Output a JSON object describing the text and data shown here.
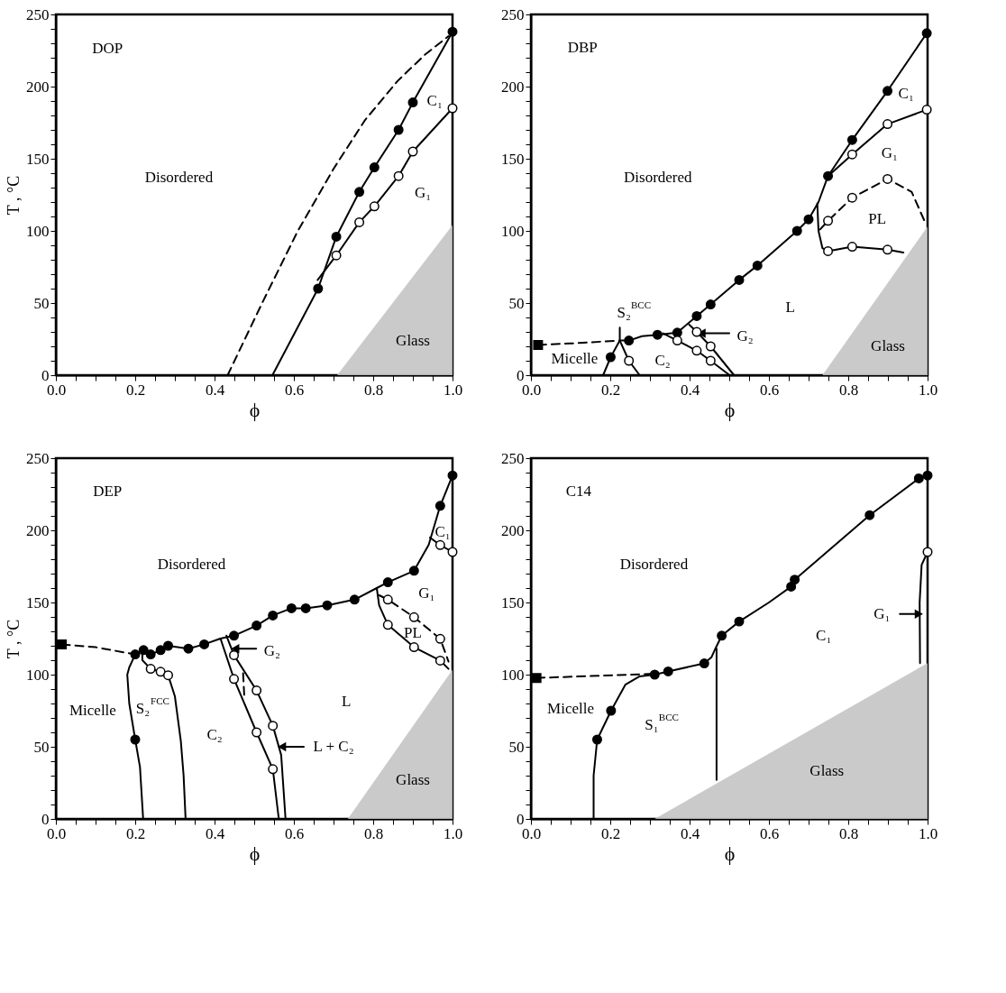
{
  "chart_data": [
    {
      "type": "line",
      "xlabel": "ϕ",
      "ylabel": "T , °C",
      "xlim": [
        0,
        1
      ],
      "ylim": [
        0,
        250
      ],
      "xticks": [
        {
          "value": 0,
          "label": "0.0"
        },
        {
          "value": 0.05,
          "label": null
        },
        {
          "value": 0.1,
          "label": null
        },
        {
          "value": 0.15,
          "label": null
        },
        {
          "value": 0.2,
          "label": "0.2"
        },
        {
          "value": 0.25,
          "label": null
        },
        {
          "value": 0.3,
          "label": null
        },
        {
          "value": 0.35,
          "label": null
        },
        {
          "value": 0.4,
          "label": "0.4"
        },
        {
          "value": 0.45,
          "label": null
        },
        {
          "value": 0.5,
          "label": null
        },
        {
          "value": 0.55,
          "label": null
        },
        {
          "value": 0.6,
          "label": "0.6"
        },
        {
          "value": 0.65,
          "label": null
        },
        {
          "value": 0.7,
          "label": null
        },
        {
          "value": 0.75,
          "label": null
        },
        {
          "value": 0.8,
          "label": "0.8"
        },
        {
          "value": 0.85,
          "label": null
        },
        {
          "value": 0.9,
          "label": null
        },
        {
          "value": 0.95,
          "label": null
        },
        {
          "value": 1,
          "label": "1.0"
        }
      ],
      "yticks": [
        0,
        {
          "value": 10,
          "label": null
        },
        {
          "value": 20,
          "label": null
        },
        {
          "value": 30,
          "label": null
        },
        {
          "value": 40,
          "label": null
        },
        50,
        {
          "value": 60,
          "label": null
        },
        {
          "value": 70,
          "label": null
        },
        {
          "value": 80,
          "label": null
        },
        {
          "value": 90,
          "label": null
        },
        100,
        {
          "value": 110,
          "label": null
        },
        {
          "value": 120,
          "label": null
        },
        {
          "value": 130,
          "label": null
        },
        {
          "value": 140,
          "label": null
        },
        150,
        {
          "value": 160,
          "label": null
        },
        {
          "value": 170,
          "label": null
        },
        {
          "value": 180,
          "label": null
        },
        {
          "value": 190,
          "label": null
        },
        200,
        {
          "value": 210,
          "label": null
        },
        {
          "value": 220,
          "label": null
        },
        {
          "value": 230,
          "label": null
        },
        {
          "value": 240,
          "label": null
        },
        250
      ],
      "series": [
        {
          "type": "area",
          "color": "#c4c4c4",
          "x": [
            0.709,
            1.0
          ],
          "values": [
            0,
            104
          ]
        },
        {
          "type": "line",
          "color": "#000000",
          "line_style": "dashed",
          "x": [
            0.433,
            0.52,
            0.61,
            0.7,
            0.78,
            0.862,
            0.93,
            0.99
          ],
          "values": [
            0,
            50,
            100,
            143,
            177,
            204,
            222,
            235
          ]
        },
        {
          "type": "line",
          "color": "#000000",
          "line_style": "solid",
          "x": [
            0.546,
            0.661,
            0.707,
            0.765,
            0.803,
            0.864,
            0.9,
            1.0
          ],
          "values": [
            0,
            60,
            96,
            127,
            144,
            170,
            189,
            238
          ]
        },
        {
          "type": "line",
          "color": "#000000",
          "line_style": "solid",
          "x": [
            0.66,
            0.707,
            0.765,
            0.803,
            0.864,
            0.9,
            1.0
          ],
          "values": [
            66,
            83,
            106,
            117,
            138,
            155,
            185
          ]
        },
        {
          "type": "scatter",
          "marker": "circle",
          "color": "#000000",
          "x": [
            0.661,
            0.707,
            0.765,
            0.803,
            0.864,
            0.9,
            1.0
          ],
          "values": [
            60,
            96,
            127,
            144,
            170,
            189,
            238
          ]
        },
        {
          "type": "scatter",
          "marker": "circle",
          "color": "#ffffff",
          "x": [
            0.707,
            0.765,
            0.803,
            0.864,
            0.9,
            1.0
          ],
          "values": [
            83,
            106,
            117,
            138,
            155,
            185
          ]
        }
      ],
      "annotations": [
        "DOP",
        "Disordered",
        "C₁",
        "G₁",
        "Glass"
      ]
    },
    {
      "type": "line",
      "xlabel": "ϕ",
      "xlim": [
        0,
        1
      ],
      "ylim": [
        0,
        250
      ],
      "xticks": [
        {
          "value": 0,
          "label": "0.0"
        },
        {
          "value": 0.05,
          "label": null
        },
        {
          "value": 0.1,
          "label": null
        },
        {
          "value": 0.15,
          "label": null
        },
        {
          "value": 0.2,
          "label": "0.2"
        },
        {
          "value": 0.25,
          "label": null
        },
        {
          "value": 0.3,
          "label": null
        },
        {
          "value": 0.35,
          "label": null
        },
        {
          "value": 0.4,
          "label": "0.4"
        },
        {
          "value": 0.45,
          "label": null
        },
        {
          "value": 0.5,
          "label": null
        },
        {
          "value": 0.55,
          "label": null
        },
        {
          "value": 0.6,
          "label": "0.6"
        },
        {
          "value": 0.65,
          "label": null
        },
        {
          "value": 0.7,
          "label": null
        },
        {
          "value": 0.75,
          "label": null
        },
        {
          "value": 0.8,
          "label": "0.8"
        },
        {
          "value": 0.85,
          "label": null
        },
        {
          "value": 0.9,
          "label": null
        },
        {
          "value": 0.95,
          "label": null
        },
        {
          "value": 1,
          "label": "1.0"
        }
      ],
      "yticks": [
        0,
        {
          "value": 10,
          "label": null
        },
        {
          "value": 20,
          "label": null
        },
        {
          "value": 30,
          "label": null
        },
        {
          "value": 40,
          "label": null
        },
        50,
        {
          "value": 60,
          "label": null
        },
        {
          "value": 70,
          "label": null
        },
        {
          "value": 80,
          "label": null
        },
        {
          "value": 90,
          "label": null
        },
        100,
        {
          "value": 110,
          "label": null
        },
        {
          "value": 120,
          "label": null
        },
        {
          "value": 130,
          "label": null
        },
        {
          "value": 140,
          "label": null
        },
        150,
        {
          "value": 160,
          "label": null
        },
        {
          "value": 170,
          "label": null
        },
        {
          "value": 180,
          "label": null
        },
        {
          "value": 190,
          "label": null
        },
        200,
        {
          "value": 210,
          "label": null
        },
        {
          "value": 220,
          "label": null
        },
        {
          "value": 230,
          "label": null
        },
        {
          "value": 240,
          "label": null
        },
        250
      ],
      "series": [
        {
          "type": "area",
          "color": "#c4c4c4",
          "x": [
            0.735,
            1.0
          ],
          "values": [
            0,
            103
          ]
        },
        {
          "type": "line",
          "color": "#000000",
          "line_style": "dashed",
          "x": [
            0.018,
            0.1,
            0.224
          ],
          "values": [
            21,
            22,
            24
          ]
        },
        {
          "type": "line",
          "color": "#000000",
          "line_style": "solid",
          "x": [
            0.224,
            0.247,
            0.28,
            0.319,
            0.369,
            0.418,
            0.453,
            0.525,
            0.571,
            0.671,
            0.7,
            0.725,
            0.749,
            0.81,
            0.899,
            0.998
          ],
          "values": [
            24,
            24,
            27,
            28,
            29.5,
            41,
            49,
            66,
            76,
            100,
            108,
            120,
            138,
            163,
            197,
            237
          ]
        },
        {
          "type": "line",
          "color": "#000000",
          "line_style": "solid",
          "x": [
            0.182,
            0.201,
            0.224
          ],
          "values": [
            0,
            12.5,
            24
          ]
        },
        {
          "type": "line",
          "color": "#000000",
          "line_style": "solid",
          "x": [
            0.224,
            0.224,
            0.247,
            0.274
          ],
          "values": [
            33,
            24,
            10,
            0
          ]
        },
        {
          "type": "line",
          "color": "#000000",
          "line_style": "solid",
          "x": [
            0.333,
            0.369,
            0.418,
            0.453,
            0.501
          ],
          "values": [
            29,
            24,
            17,
            10,
            0
          ]
        },
        {
          "type": "line",
          "color": "#000000",
          "line_style": "solid",
          "x": [
            0.399,
            0.418,
            0.453,
            0.512
          ],
          "values": [
            35,
            30,
            20,
            0
          ]
        },
        {
          "type": "line",
          "color": "#000000",
          "line_style": "solid",
          "x": [
            0.749,
            0.81,
            0.899,
            0.998
          ],
          "values": [
            138,
            153,
            174,
            184
          ]
        },
        {
          "type": "line",
          "color": "#000000",
          "line_style": "solid",
          "x": [
            0.722,
            0.725,
            0.735,
            0.749,
            0.81,
            0.899,
            0.939
          ],
          "values": [
            119,
            100,
            88,
            86,
            89,
            87,
            85
          ]
        },
        {
          "type": "line",
          "color": "#000000",
          "line_style": "dashed",
          "x": [
            0.729,
            0.749,
            0.81,
            0.899,
            0.96,
            0.992
          ],
          "values": [
            101,
            107,
            123,
            136,
            127,
            107
          ]
        },
        {
          "type": "line",
          "color": "#000000",
          "line_style": "solid",
          "marker": "triangle",
          "x": [
            0.5,
            0.43
          ],
          "values": [
            29,
            29
          ]
        },
        {
          "type": "scatter",
          "marker": "square",
          "color": "#000000",
          "x": [
            0.018
          ],
          "values": [
            21
          ]
        },
        {
          "type": "scatter",
          "marker": "circle",
          "color": "#000000",
          "x": [
            0.201,
            0.247,
            0.319,
            0.369,
            0.418,
            0.453,
            0.525,
            0.571,
            0.671,
            0.7,
            0.749,
            0.81,
            0.899,
            0.998
          ],
          "values": [
            12.5,
            24,
            28,
            29.5,
            41,
            49,
            66,
            76,
            100,
            108,
            138,
            163,
            197,
            237
          ]
        },
        {
          "type": "scatter",
          "marker": "circle",
          "color": "#ffffff",
          "x": [
            0.247,
            0.369,
            0.418,
            0.418,
            0.453,
            0.453,
            0.749,
            0.81,
            0.899,
            0.81,
            0.899,
            0.998,
            0.749,
            0.81,
            0.899
          ],
          "values": [
            10,
            24,
            17,
            30,
            20,
            10,
            107,
            123,
            136,
            153,
            174,
            184,
            86,
            89,
            87
          ]
        }
      ],
      "annotations": [
        "DBP",
        "Disordered",
        "C₁",
        "G₁",
        "PL",
        "L",
        "Glass",
        "Micelle",
        "C₂",
        "S₂$^{BCC}$",
        "G₂"
      ]
    },
    {
      "type": "line",
      "xlabel": "ϕ",
      "ylabel": "T , °C",
      "xlim": [
        0,
        1
      ],
      "ylim": [
        0,
        250
      ],
      "xticks": [
        {
          "value": 0,
          "label": "0.0"
        },
        {
          "value": 0.05,
          "label": null
        },
        {
          "value": 0.1,
          "label": null
        },
        {
          "value": 0.15,
          "label": null
        },
        {
          "value": 0.2,
          "label": "0.2"
        },
        {
          "value": 0.25,
          "label": null
        },
        {
          "value": 0.3,
          "label": null
        },
        {
          "value": 0.35,
          "label": null
        },
        {
          "value": 0.4,
          "label": "0.4"
        },
        {
          "value": 0.45,
          "label": null
        },
        {
          "value": 0.5,
          "label": null
        },
        {
          "value": 0.55,
          "label": null
        },
        {
          "value": 0.6,
          "label": "0.6"
        },
        {
          "value": 0.65,
          "label": null
        },
        {
          "value": 0.7,
          "label": null
        },
        {
          "value": 0.75,
          "label": null
        },
        {
          "value": 0.8,
          "label": "0.8"
        },
        {
          "value": 0.85,
          "label": null
        },
        {
          "value": 0.9,
          "label": null
        },
        {
          "value": 0.95,
          "label": null
        },
        {
          "value": 1,
          "label": "1.0"
        }
      ],
      "yticks": [
        0,
        {
          "value": 10,
          "label": null
        },
        {
          "value": 20,
          "label": null
        },
        {
          "value": 30,
          "label": null
        },
        {
          "value": 40,
          "label": null
        },
        50,
        {
          "value": 60,
          "label": null
        },
        {
          "value": 70,
          "label": null
        },
        {
          "value": 80,
          "label": null
        },
        {
          "value": 90,
          "label": null
        },
        100,
        {
          "value": 110,
          "label": null
        },
        {
          "value": 120,
          "label": null
        },
        {
          "value": 130,
          "label": null
        },
        {
          "value": 140,
          "label": null
        },
        150,
        {
          "value": 160,
          "label": null
        },
        {
          "value": 170,
          "label": null
        },
        {
          "value": 180,
          "label": null
        },
        {
          "value": 190,
          "label": null
        },
        200,
        {
          "value": 210,
          "label": null
        },
        {
          "value": 220,
          "label": null
        },
        {
          "value": 230,
          "label": null
        },
        {
          "value": 240,
          "label": null
        },
        250
      ],
      "series": [
        {
          "type": "area",
          "color": "#c4c4c4",
          "x": [
            0.736,
            1.0
          ],
          "values": [
            0,
            103.5
          ]
        },
        {
          "type": "line",
          "color": "#000000",
          "line_style": "dashed",
          "x": [
            0.015,
            0.1,
            0.2
          ],
          "values": [
            121,
            119,
            114
          ]
        },
        {
          "type": "line",
          "color": "#000000",
          "line_style": "solid",
          "x": [
            0.2,
            0.221,
            0.239,
            0.264,
            0.283,
            0.334,
            0.374,
            0.415,
            0.449,
            0.506,
            0.547,
            0.594,
            0.63,
            0.684,
            0.753,
            0.809,
            0.837,
            0.903,
            0.94,
            0.969,
            1.0
          ],
          "values": [
            114,
            117,
            114,
            117,
            120,
            118,
            121,
            125,
            127,
            134,
            141,
            146,
            146,
            148,
            152,
            160,
            164,
            172,
            190,
            217,
            238
          ]
        },
        {
          "type": "line",
          "color": "#000000",
          "line_style": "solid",
          "x": [
            0.2,
            0.185,
            0.18,
            0.185,
            0.2,
            0.212,
            0.22
          ],
          "values": [
            114,
            105,
            100,
            80,
            55,
            36,
            0
          ]
        },
        {
          "type": "line",
          "color": "#000000",
          "line_style": "solid",
          "x": [
            0.218,
            0.218,
            0.239,
            0.264,
            0.283,
            0.3,
            0.315,
            0.322,
            0.327
          ],
          "values": [
            117,
            110,
            104,
            102,
            99.6,
            85,
            54,
            30,
            0
          ]
        },
        {
          "type": "line",
          "color": "#000000",
          "line_style": "solid",
          "x": [
            0.415,
            0.449,
            0.506,
            0.547,
            0.562
          ],
          "values": [
            125,
            97,
            60,
            34.5,
            0
          ]
        },
        {
          "type": "line",
          "color": "#000000",
          "line_style": "solid",
          "x": [
            0.43,
            0.449,
            0.506,
            0.547,
            0.568,
            0.579
          ],
          "values": [
            127,
            113.5,
            89,
            64.6,
            44.3,
            0
          ]
        },
        {
          "type": "line",
          "color": "#000000",
          "line_style": "dashed",
          "x": [
            0.472,
            0.475
          ],
          "values": [
            101,
            85
          ]
        },
        {
          "type": "line",
          "color": "#000000",
          "line_style": "solid",
          "x": [
            0.809,
            0.815,
            0.837,
            0.903,
            0.969,
            0.99
          ],
          "values": [
            160,
            148,
            134.5,
            119,
            109.7,
            104
          ]
        },
        {
          "type": "line",
          "color": "#000000",
          "line_style": "dashed",
          "x": [
            0.815,
            0.837,
            0.903,
            0.969,
            0.99
          ],
          "values": [
            155,
            152,
            139.8,
            124.8,
            109
          ]
        },
        {
          "type": "line",
          "color": "#000000",
          "line_style": "solid",
          "x": [
            0.943,
            0.969,
            1.0
          ],
          "values": [
            195,
            189.8,
            185
          ]
        },
        {
          "type": "line",
          "color": "#000000",
          "line_style": "solid",
          "marker": "triangle",
          "x": [
            0.505,
            0.452
          ],
          "values": [
            118,
            118
          ]
        },
        {
          "type": "line",
          "color": "#000000",
          "line_style": "solid",
          "marker": "triangle",
          "x": [
            0.625,
            0.57
          ],
          "values": [
            50,
            50
          ]
        },
        {
          "type": "scatter",
          "marker": "square",
          "color": "#000000",
          "x": [
            0.015
          ],
          "values": [
            121
          ]
        },
        {
          "type": "scatter",
          "marker": "circle",
          "color": "#000000",
          "x": [
            0.2,
            0.221,
            0.239,
            0.264,
            0.283,
            0.334,
            0.374,
            0.449,
            0.506,
            0.547,
            0.594,
            0.63,
            0.684,
            0.753,
            0.837,
            0.903,
            0.969,
            1.0,
            0.2
          ],
          "values": [
            114,
            117,
            114,
            117,
            120,
            118,
            121,
            127,
            134,
            141,
            146,
            146,
            148,
            152,
            164,
            172,
            217,
            238,
            55
          ]
        },
        {
          "type": "scatter",
          "marker": "circle",
          "color": "#ffffff",
          "x": [
            0.239,
            0.264,
            0.283,
            0.449,
            0.506,
            0.547,
            0.449,
            0.506,
            0.547,
            0.837,
            0.903,
            0.969,
            0.837,
            0.903,
            0.969,
            0.969,
            1.0
          ],
          "values": [
            104,
            102,
            99.6,
            97,
            60,
            34.5,
            113.5,
            89,
            64.6,
            134.5,
            119,
            109.7,
            152,
            139.8,
            124.8,
            189.8,
            185
          ]
        }
      ],
      "annotations": [
        "DEP",
        "Disordered",
        "G₁",
        "PL",
        "C₁",
        "L",
        "Micelle",
        "S₂$^{FCC}$",
        "C₂",
        "Glass",
        "G₂",
        "L + C₂"
      ]
    },
    {
      "type": "line",
      "xlabel": "ϕ",
      "xlim": [
        0,
        1
      ],
      "ylim": [
        0,
        250
      ],
      "xticks": [
        {
          "value": 0,
          "label": "0.0"
        },
        {
          "value": 0.05,
          "label": null
        },
        {
          "value": 0.1,
          "label": null
        },
        {
          "value": 0.15,
          "label": null
        },
        {
          "value": 0.2,
          "label": "0.2"
        },
        {
          "value": 0.25,
          "label": null
        },
        {
          "value": 0.3,
          "label": null
        },
        {
          "value": 0.35,
          "label": null
        },
        {
          "value": 0.4,
          "label": "0.4"
        },
        {
          "value": 0.45,
          "label": null
        },
        {
          "value": 0.5,
          "label": null
        },
        {
          "value": 0.55,
          "label": null
        },
        {
          "value": 0.6,
          "label": "0.6"
        },
        {
          "value": 0.65,
          "label": null
        },
        {
          "value": 0.7,
          "label": null
        },
        {
          "value": 0.75,
          "label": null
        },
        {
          "value": 0.8,
          "label": "0.8"
        },
        {
          "value": 0.85,
          "label": null
        },
        {
          "value": 0.9,
          "label": null
        },
        {
          "value": 0.95,
          "label": null
        },
        {
          "value": 1,
          "label": "1.0"
        }
      ],
      "yticks": [
        0,
        {
          "value": 10,
          "label": null
        },
        {
          "value": 20,
          "label": null
        },
        {
          "value": 30,
          "label": null
        },
        {
          "value": 40,
          "label": null
        },
        50,
        {
          "value": 60,
          "label": null
        },
        {
          "value": 70,
          "label": null
        },
        {
          "value": 80,
          "label": null
        },
        {
          "value": 90,
          "label": null
        },
        100,
        {
          "value": 110,
          "label": null
        },
        {
          "value": 120,
          "label": null
        },
        {
          "value": 130,
          "label": null
        },
        {
          "value": 140,
          "label": null
        },
        150,
        {
          "value": 160,
          "label": null
        },
        {
          "value": 170,
          "label": null
        },
        {
          "value": 180,
          "label": null
        },
        {
          "value": 190,
          "label": null
        },
        200,
        {
          "value": 210,
          "label": null
        },
        {
          "value": 220,
          "label": null
        },
        {
          "value": 230,
          "label": null
        },
        {
          "value": 240,
          "label": null
        },
        250
      ],
      "series": [
        {
          "type": "area",
          "color": "#c4c4c4",
          "x": [
            0.312,
            1.0
          ],
          "values": [
            0,
            108
          ]
        },
        {
          "type": "line",
          "color": "#000000",
          "line_style": "dashed",
          "x": [
            0.014,
            0.15,
            0.312
          ],
          "values": [
            97.7,
            99,
            100.6
          ]
        },
        {
          "type": "line",
          "color": "#000000",
          "line_style": "solid",
          "x": [
            0.312,
            0.346,
            0.437,
            0.455,
            0.465,
            0.481,
            0.525,
            0.6,
            0.656,
            0.665,
            0.854,
            0.978,
            1.0
          ],
          "values": [
            100,
            102.2,
            107.8,
            112,
            118,
            127,
            136.8,
            150,
            161,
            165.8,
            210.5,
            236,
            238
          ]
        },
        {
          "type": "line",
          "color": "#000000",
          "line_style": "solid",
          "x": [
            0.158,
            0.158,
            0.167,
            0.202,
            0.238,
            0.273,
            0.312
          ],
          "values": [
            0,
            30,
            55,
            75,
            93,
            98.7,
            100
          ]
        },
        {
          "type": "line",
          "color": "#000000",
          "line_style": "solid",
          "x": [
            0.468,
            0.468
          ],
          "values": [
            27,
            118
          ]
        },
        {
          "type": "line",
          "color": "#000000",
          "line_style": "solid",
          "x": [
            1.0,
            0.985,
            0.98,
            0.981
          ],
          "values": [
            185,
            176,
            150,
            108
          ]
        },
        {
          "type": "line",
          "color": "#000000",
          "line_style": "solid",
          "marker": "triangle",
          "x": [
            0.93,
            0.978
          ],
          "values": [
            142,
            142
          ]
        },
        {
          "type": "scatter",
          "marker": "square",
          "color": "#000000",
          "x": [
            0.014
          ],
          "values": [
            97.7
          ]
        },
        {
          "type": "scatter",
          "marker": "circle",
          "color": "#000000",
          "x": [
            0.312,
            0.346,
            0.437,
            0.481,
            0.525,
            0.656,
            0.665,
            0.854,
            0.978,
            1.0,
            0.167,
            0.202
          ],
          "values": [
            100,
            102.2,
            107.8,
            127,
            136.8,
            161,
            165.8,
            210.5,
            236,
            238,
            55,
            75
          ]
        },
        {
          "type": "scatter",
          "marker": "circle",
          "color": "#ffffff",
          "x": [
            1.0
          ],
          "values": [
            185
          ]
        }
      ],
      "annotations": [
        "C14",
        "Disordered",
        "C₁",
        "Micelle",
        "S₁$^{BCC}$",
        "Glass",
        "G₁"
      ]
    }
  ]
}
